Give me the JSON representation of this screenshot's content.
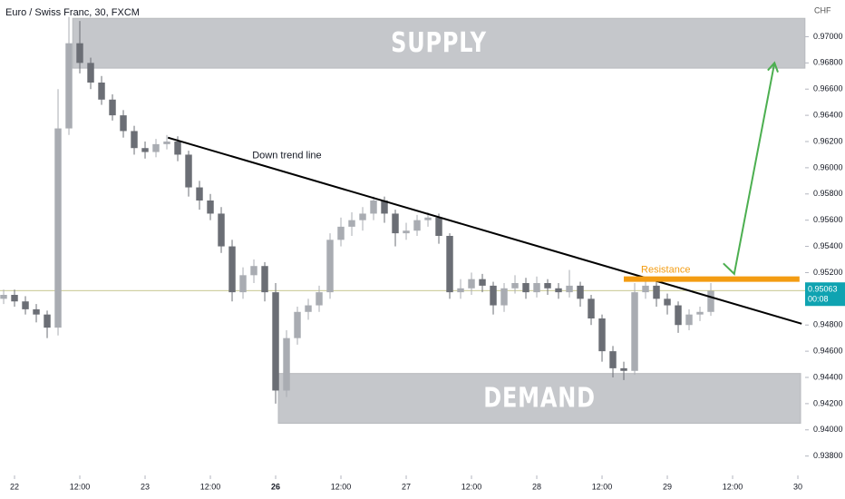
{
  "chart_data": {
    "type": "candlestick",
    "title": "Euro / Swiss Franc, 30, FXCM",
    "y_axis_label": "CHF",
    "x": [
      -2,
      0,
      2,
      4,
      6,
      8,
      10,
      12,
      14,
      16,
      18,
      20,
      22,
      24,
      26,
      28,
      30,
      32,
      34,
      36,
      38,
      40,
      42,
      44,
      46,
      48,
      50,
      52,
      54,
      56,
      58,
      60,
      62,
      64,
      66,
      68,
      70,
      72,
      74,
      76,
      78,
      80,
      82,
      84,
      86,
      88,
      90,
      92,
      94,
      96,
      98,
      100,
      102,
      104,
      106,
      108,
      110,
      112,
      114,
      116,
      118,
      120,
      122,
      124,
      126,
      128
    ],
    "open": [
      0.95,
      0.9503,
      0.9498,
      0.9492,
      0.9488,
      0.9478,
      0.963,
      0.9695,
      0.968,
      0.9665,
      0.9652,
      0.964,
      0.9628,
      0.9615,
      0.9612,
      0.9618,
      0.962,
      0.961,
      0.9585,
      0.9575,
      0.9565,
      0.954,
      0.9505,
      0.9518,
      0.9525,
      0.9505,
      0.943,
      0.947,
      0.949,
      0.9495,
      0.9505,
      0.9545,
      0.9555,
      0.956,
      0.9565,
      0.9575,
      0.9565,
      0.955,
      0.9552,
      0.956,
      0.9562,
      0.9548,
      0.9505,
      0.9508,
      0.9515,
      0.951,
      0.9495,
      0.9508,
      0.9512,
      0.9505,
      0.9512,
      0.9508,
      0.9505,
      0.951,
      0.95,
      0.9485,
      0.946,
      0.9447,
      0.9445,
      0.9505,
      0.951,
      0.95,
      0.9495,
      0.948,
      0.9488,
      0.949
    ],
    "high": [
      0.9507,
      0.9507,
      0.9502,
      0.9496,
      0.9491,
      0.966,
      0.9715,
      0.9712,
      0.9684,
      0.967,
      0.9656,
      0.9644,
      0.9632,
      0.962,
      0.9622,
      0.9625,
      0.9624,
      0.9613,
      0.959,
      0.958,
      0.957,
      0.9545,
      0.9524,
      0.953,
      0.9528,
      0.9512,
      0.9476,
      0.9494,
      0.95,
      0.951,
      0.955,
      0.9562,
      0.9566,
      0.957,
      0.9578,
      0.9578,
      0.9568,
      0.9558,
      0.9564,
      0.9566,
      0.9565,
      0.955,
      0.9515,
      0.952,
      0.9519,
      0.9513,
      0.9512,
      0.9518,
      0.9516,
      0.9517,
      0.9515,
      0.9512,
      0.9522,
      0.9513,
      0.9503,
      0.9488,
      0.9464,
      0.9452,
      0.9512,
      0.9515,
      0.9513,
      0.9504,
      0.9498,
      0.9492,
      0.9494,
      0.9512
    ],
    "low": [
      0.9496,
      0.9494,
      0.9488,
      0.9482,
      0.947,
      0.9472,
      0.9625,
      0.9672,
      0.966,
      0.9648,
      0.9636,
      0.9623,
      0.961,
      0.9607,
      0.9608,
      0.9614,
      0.9605,
      0.9578,
      0.9568,
      0.956,
      0.9535,
      0.9498,
      0.95,
      0.9512,
      0.9498,
      0.942,
      0.9425,
      0.9465,
      0.9484,
      0.949,
      0.95,
      0.954,
      0.9548,
      0.9552,
      0.956,
      0.9558,
      0.954,
      0.9545,
      0.9548,
      0.9555,
      0.9542,
      0.95,
      0.95,
      0.9503,
      0.9505,
      0.9488,
      0.949,
      0.9504,
      0.95,
      0.9501,
      0.9503,
      0.95,
      0.9501,
      0.9494,
      0.948,
      0.9452,
      0.944,
      0.9438,
      0.9442,
      0.95,
      0.9494,
      0.9488,
      0.9474,
      0.9476,
      0.9483,
      0.9487
    ],
    "close": [
      0.9503,
      0.9498,
      0.9492,
      0.9488,
      0.9478,
      0.963,
      0.9695,
      0.968,
      0.9665,
      0.9652,
      0.964,
      0.9628,
      0.9615,
      0.9612,
      0.9618,
      0.962,
      0.961,
      0.9585,
      0.9575,
      0.9565,
      0.954,
      0.9505,
      0.9518,
      0.9525,
      0.9505,
      0.943,
      0.947,
      0.949,
      0.9495,
      0.9505,
      0.9545,
      0.9555,
      0.956,
      0.9565,
      0.9575,
      0.9565,
      0.955,
      0.9552,
      0.956,
      0.9562,
      0.9548,
      0.9505,
      0.9508,
      0.9515,
      0.951,
      0.9495,
      0.9508,
      0.9512,
      0.9505,
      0.9512,
      0.9508,
      0.9505,
      0.951,
      0.95,
      0.9485,
      0.946,
      0.9447,
      0.9445,
      0.9505,
      0.951,
      0.95,
      0.9495,
      0.948,
      0.9488,
      0.949,
      0.9506
    ],
    "up_color": "#a9acb2",
    "down_color": "#6b6e75",
    "xlim": [
      -2.67,
      145.33
    ],
    "ylim": [
      0.9368,
      0.9728
    ],
    "xticks": [
      {
        "value": 0,
        "label": "22"
      },
      {
        "value": 12,
        "label": "12:00"
      },
      {
        "value": 24,
        "label": "23"
      },
      {
        "value": 36,
        "label": "12:00"
      },
      {
        "value": 48,
        "label": "26",
        "bold": true
      },
      {
        "value": 60,
        "label": "12:00"
      },
      {
        "value": 72,
        "label": "27"
      },
      {
        "value": 84,
        "label": "12:00"
      },
      {
        "value": 96,
        "label": "28"
      },
      {
        "value": 108,
        "label": "12:00"
      },
      {
        "value": 120,
        "label": "29"
      },
      {
        "value": 132,
        "label": "12:00"
      },
      {
        "value": 144,
        "label": "30"
      }
    ],
    "yticks": [
      {
        "value": 0.97,
        "label": "0.97000"
      },
      {
        "value": 0.968,
        "label": "0.96800"
      },
      {
        "value": 0.966,
        "label": "0.96600"
      },
      {
        "value": 0.964,
        "label": "0.96400"
      },
      {
        "value": 0.962,
        "label": "0.96200"
      },
      {
        "value": 0.96,
        "label": "0.96000"
      },
      {
        "value": 0.958,
        "label": "0.95800"
      },
      {
        "value": 0.956,
        "label": "0.95600"
      },
      {
        "value": 0.954,
        "label": "0.95400"
      },
      {
        "value": 0.952,
        "label": "0.95200"
      },
      {
        "value": 0.948,
        "label": "0.94800"
      },
      {
        "value": 0.946,
        "label": "0.94600"
      },
      {
        "value": 0.944,
        "label": "0.94400"
      },
      {
        "value": 0.942,
        "label": "0.94200"
      },
      {
        "value": 0.94,
        "label": "0.94000"
      },
      {
        "value": 0.938,
        "label": "0.93800"
      }
    ],
    "last_price": 0.95063,
    "countdown": "00:08",
    "zones": [
      {
        "label": "SUPPLY",
        "x": [
          10.7,
          145.3
        ],
        "y": [
          0.9676,
          0.9714
        ],
        "color": "#c5c7cb"
      },
      {
        "label": "DEMAND",
        "x": [
          48.5,
          144.5
        ],
        "y": [
          0.9405,
          0.9443
        ],
        "color": "#c5c7cb"
      }
    ],
    "trend_line": {
      "label": "Down trend line",
      "x": [
        28.2,
        144.7
      ],
      "y": [
        0.9623,
        0.9481
      ],
      "color": "#000000"
    },
    "resistance": {
      "label": "Resistance",
      "x": [
        112,
        144.3
      ],
      "y": 0.9515,
      "color": "#f39c12"
    },
    "arrow": {
      "x": [
        130.3,
        132.3,
        139.7
      ],
      "y": [
        0.9527,
        0.9519,
        0.968
      ],
      "color": "#4caf50"
    }
  }
}
